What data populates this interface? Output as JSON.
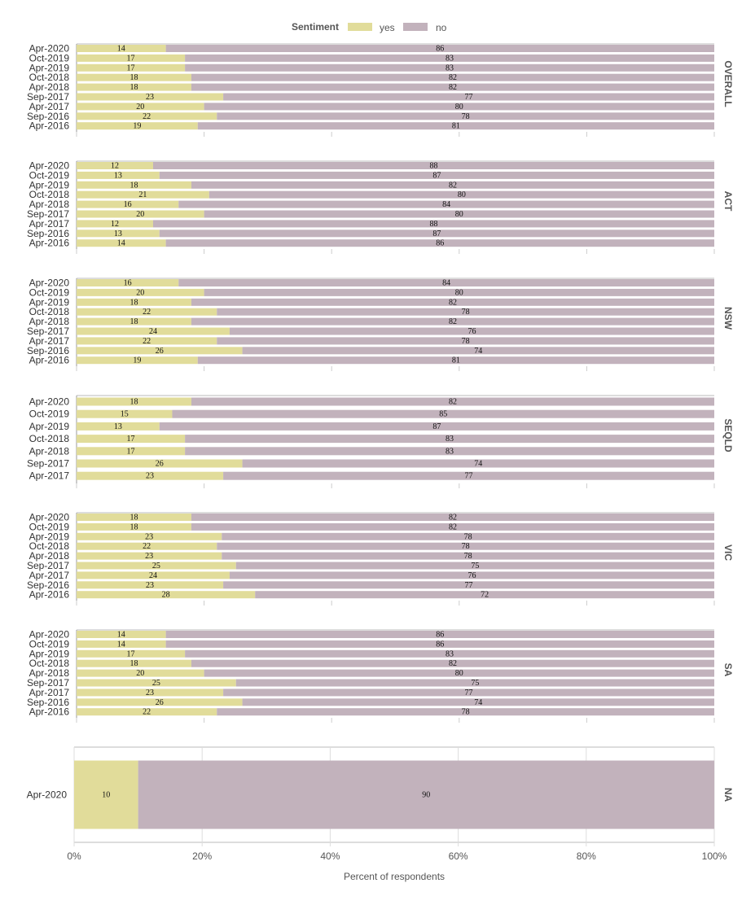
{
  "chart_data": {
    "type": "bar",
    "orientation": "horizontal",
    "stacked": true,
    "xlabel": "Percent of respondents",
    "xlim": [
      0,
      100
    ],
    "x_ticks": [
      "0%",
      "20%",
      "40%",
      "60%",
      "80%",
      "100%"
    ],
    "grid": true,
    "legend": {
      "title": "Sentiment",
      "placement": "top",
      "entries": [
        {
          "name": "yes",
          "color": "#e1dc9a"
        },
        {
          "name": "no",
          "color": "#c2b2bc"
        }
      ]
    },
    "facets": [
      {
        "name": "OVERALL",
        "rows": [
          {
            "label": "Apr-2020",
            "yes": 14,
            "no": 86
          },
          {
            "label": "Oct-2019",
            "yes": 17,
            "no": 83
          },
          {
            "label": "Apr-2019",
            "yes": 17,
            "no": 83
          },
          {
            "label": "Oct-2018",
            "yes": 18,
            "no": 82
          },
          {
            "label": "Apr-2018",
            "yes": 18,
            "no": 82
          },
          {
            "label": "Sep-2017",
            "yes": 23,
            "no": 77
          },
          {
            "label": "Apr-2017",
            "yes": 20,
            "no": 80
          },
          {
            "label": "Sep-2016",
            "yes": 22,
            "no": 78
          },
          {
            "label": "Apr-2016",
            "yes": 19,
            "no": 81
          }
        ]
      },
      {
        "name": "ACT",
        "rows": [
          {
            "label": "Apr-2020",
            "yes": 12,
            "no": 88
          },
          {
            "label": "Oct-2019",
            "yes": 13,
            "no": 87
          },
          {
            "label": "Apr-2019",
            "yes": 18,
            "no": 82
          },
          {
            "label": "Oct-2018",
            "yes": 21,
            "no": 80
          },
          {
            "label": "Apr-2018",
            "yes": 16,
            "no": 84
          },
          {
            "label": "Sep-2017",
            "yes": 20,
            "no": 80
          },
          {
            "label": "Apr-2017",
            "yes": 12,
            "no": 88
          },
          {
            "label": "Sep-2016",
            "yes": 13,
            "no": 87
          },
          {
            "label": "Apr-2016",
            "yes": 14,
            "no": 86
          }
        ]
      },
      {
        "name": "NSW",
        "rows": [
          {
            "label": "Apr-2020",
            "yes": 16,
            "no": 84
          },
          {
            "label": "Oct-2019",
            "yes": 20,
            "no": 80
          },
          {
            "label": "Apr-2019",
            "yes": 18,
            "no": 82
          },
          {
            "label": "Oct-2018",
            "yes": 22,
            "no": 78
          },
          {
            "label": "Apr-2018",
            "yes": 18,
            "no": 82
          },
          {
            "label": "Sep-2017",
            "yes": 24,
            "no": 76
          },
          {
            "label": "Apr-2017",
            "yes": 22,
            "no": 78
          },
          {
            "label": "Sep-2016",
            "yes": 26,
            "no": 74
          },
          {
            "label": "Apr-2016",
            "yes": 19,
            "no": 81
          }
        ]
      },
      {
        "name": "SEQLD",
        "rows": [
          {
            "label": "Apr-2020",
            "yes": 18,
            "no": 82
          },
          {
            "label": "Oct-2019",
            "yes": 15,
            "no": 85
          },
          {
            "label": "Apr-2019",
            "yes": 13,
            "no": 87
          },
          {
            "label": "Oct-2018",
            "yes": 17,
            "no": 83
          },
          {
            "label": "Apr-2018",
            "yes": 17,
            "no": 83
          },
          {
            "label": "Sep-2017",
            "yes": 26,
            "no": 74
          },
          {
            "label": "Apr-2017",
            "yes": 23,
            "no": 77
          }
        ]
      },
      {
        "name": "VIC",
        "rows": [
          {
            "label": "Apr-2020",
            "yes": 18,
            "no": 82
          },
          {
            "label": "Oct-2019",
            "yes": 18,
            "no": 82
          },
          {
            "label": "Apr-2019",
            "yes": 23,
            "no": 78
          },
          {
            "label": "Oct-2018",
            "yes": 22,
            "no": 78
          },
          {
            "label": "Apr-2018",
            "yes": 23,
            "no": 78
          },
          {
            "label": "Sep-2017",
            "yes": 25,
            "no": 75
          },
          {
            "label": "Apr-2017",
            "yes": 24,
            "no": 76
          },
          {
            "label": "Sep-2016",
            "yes": 23,
            "no": 77
          },
          {
            "label": "Apr-2016",
            "yes": 28,
            "no": 72
          }
        ]
      },
      {
        "name": "SA",
        "rows": [
          {
            "label": "Apr-2020",
            "yes": 14,
            "no": 86
          },
          {
            "label": "Oct-2019",
            "yes": 14,
            "no": 86
          },
          {
            "label": "Apr-2019",
            "yes": 17,
            "no": 83
          },
          {
            "label": "Oct-2018",
            "yes": 18,
            "no": 82
          },
          {
            "label": "Apr-2018",
            "yes": 20,
            "no": 80
          },
          {
            "label": "Sep-2017",
            "yes": 25,
            "no": 75
          },
          {
            "label": "Apr-2017",
            "yes": 23,
            "no": 77
          },
          {
            "label": "Sep-2016",
            "yes": 26,
            "no": 74
          },
          {
            "label": "Apr-2016",
            "yes": 22,
            "no": 78
          }
        ]
      },
      {
        "name": "NA",
        "rows": [
          {
            "label": "Apr-2020",
            "yes": 10,
            "no": 90
          }
        ]
      }
    ]
  }
}
